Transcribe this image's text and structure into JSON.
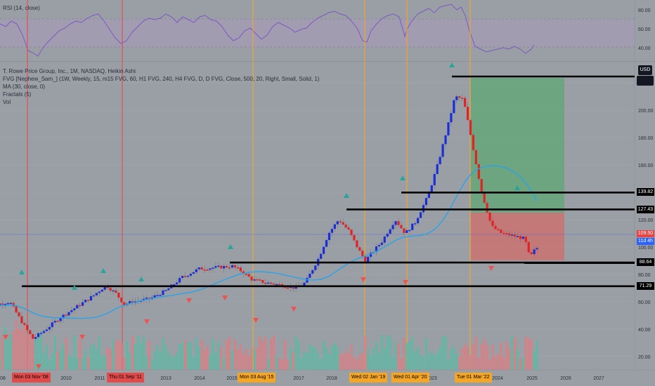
{
  "rsi": {
    "title": "RSI (14, close)",
    "ticks": [
      80.0,
      60.0,
      40.0
    ]
  },
  "legend": {
    "symbol": "T. Rowe Price Group, Inc., 1M, NASDAQ, Heikin Ashi",
    "fvg": "FVG [Nephew_Sam_] (1W, Weekly, 15, m15 FVG, 60, H1 FVG, 240, H4 FVG, D, D FVG, Close, 500, 20, Right, Small, Solid, 1)",
    "ma": "MA (30, close, 0)",
    "fractals": "Fractals (5)",
    "vol": "Vol"
  },
  "currency": "USD",
  "price_labels": {
    "r1": "139.82",
    "r2": "127.43",
    "cur": "109.50",
    "countdown": "11d 4h",
    "s1": "88.64",
    "s2": "71.29"
  },
  "date_markers": [
    {
      "label": "Mon 03 Nov '08",
      "color": "#e34b4b"
    },
    {
      "label": "Thu 01 Sep '11",
      "color": "#e34b4b"
    },
    {
      "label": "Mon 03 Aug '15",
      "color": "#f5a623"
    },
    {
      "label": "Wed 02 Jan '19",
      "color": "#f5a623"
    },
    {
      "label": "Wed 01 Apr '20",
      "color": "#f5a623"
    },
    {
      "label": "Tue 01 Mar '22",
      "color": "#f5a623"
    }
  ],
  "chart_data": {
    "type": "candlestick",
    "x_ticks": [
      "08",
      "2010",
      "2011",
      "2013",
      "2014",
      "2015",
      "6",
      "2017",
      "2018",
      "2020",
      "2021",
      "2023",
      "2024",
      "2025",
      "2026",
      "2027"
    ],
    "y_ticks": [
      220.0,
      200.0,
      180.0,
      160.0,
      140.0,
      120.0,
      100.0,
      80.0,
      60.0,
      40.0,
      20.0
    ],
    "ylim": [
      5,
      225
    ],
    "horizontal_levels": [
      221.6,
      139.82,
      127.43,
      88.64,
      71.29
    ],
    "current_price": 109.5,
    "ma_period": 30,
    "price_path": [
      [
        2007.5,
        56
      ],
      [
        2008.3,
        60
      ],
      [
        2008.8,
        40
      ],
      [
        2009.0,
        33
      ],
      [
        2009.3,
        38
      ],
      [
        2009.8,
        48
      ],
      [
        2010.3,
        56
      ],
      [
        2010.8,
        64
      ],
      [
        2011.2,
        72
      ],
      [
        2011.5,
        66
      ],
      [
        2011.75,
        58
      ],
      [
        2012.0,
        60
      ],
      [
        2012.5,
        62
      ],
      [
        2013.0,
        68
      ],
      [
        2013.5,
        78
      ],
      [
        2014.0,
        84
      ],
      [
        2014.5,
        85
      ],
      [
        2015.0,
        86
      ],
      [
        2015.3,
        82
      ],
      [
        2015.6,
        76
      ],
      [
        2016.0,
        74
      ],
      [
        2016.5,
        72
      ],
      [
        2016.9,
        70
      ],
      [
        2017.2,
        74
      ],
      [
        2017.6,
        92
      ],
      [
        2017.9,
        110
      ],
      [
        2018.2,
        120
      ],
      [
        2018.5,
        112
      ],
      [
        2018.8,
        98
      ],
      [
        2019.0,
        90
      ],
      [
        2019.5,
        104
      ],
      [
        2019.9,
        120
      ],
      [
        2020.2,
        110
      ],
      [
        2020.5,
        118
      ],
      [
        2020.9,
        138
      ],
      [
        2021.2,
        162
      ],
      [
        2021.5,
        190
      ],
      [
        2021.7,
        210
      ],
      [
        2021.95,
        208
      ],
      [
        2022.2,
        178
      ],
      [
        2022.5,
        140
      ],
      [
        2022.8,
        115
      ],
      [
        2023.1,
        110
      ],
      [
        2023.5,
        108
      ],
      [
        2023.8,
        106
      ],
      [
        2023.95,
        92
      ],
      [
        2024.1,
        98
      ],
      [
        2024.2,
        100
      ]
    ]
  }
}
